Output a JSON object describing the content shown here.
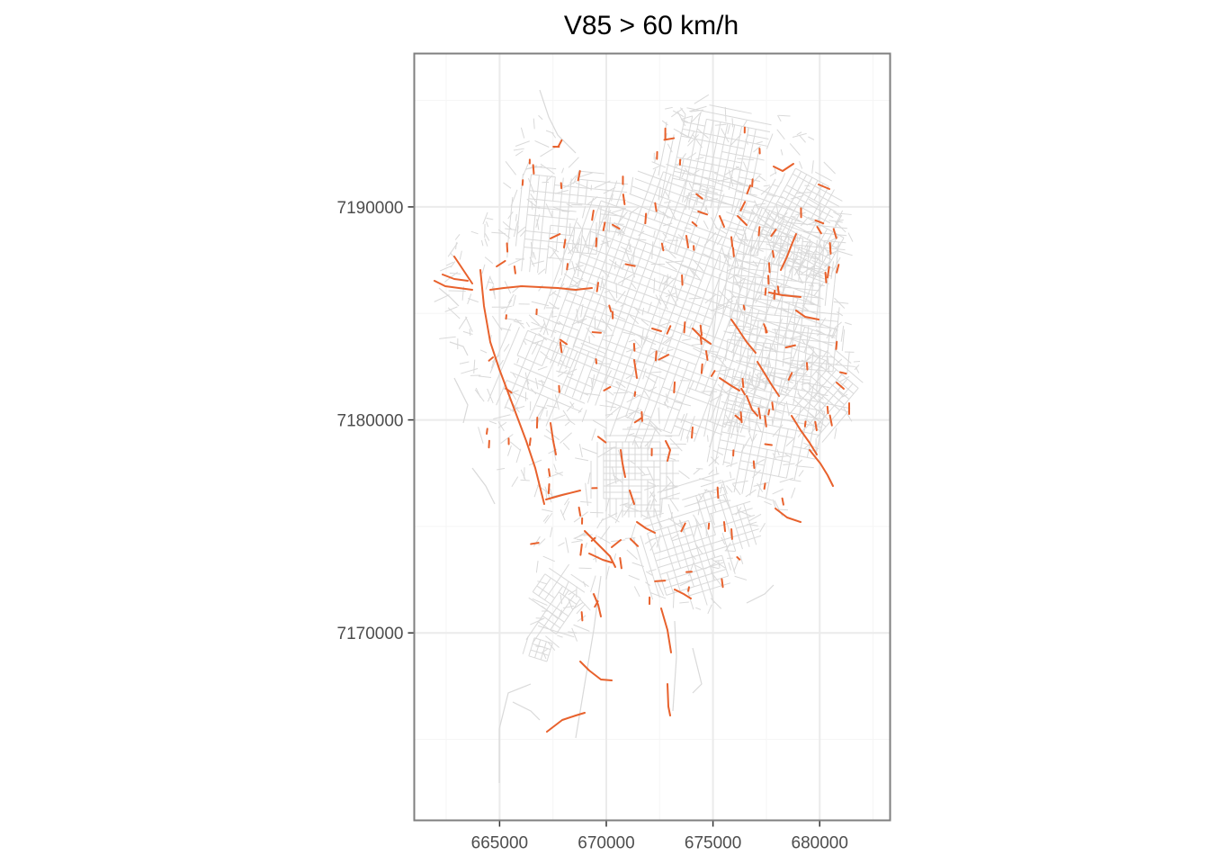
{
  "title": "V85 > 60 km/h",
  "x_axis": {
    "ticks": [
      {
        "value": 665000,
        "label": "665000"
      },
      {
        "value": 670000,
        "label": "670000"
      },
      {
        "value": 675000,
        "label": "675000"
      },
      {
        "value": 680000,
        "label": "680000"
      }
    ],
    "range": [
      661000,
      683300
    ]
  },
  "y_axis": {
    "ticks": [
      {
        "value": 7170000,
        "label": "7170000"
      },
      {
        "value": 7180000,
        "label": "7180000"
      },
      {
        "value": 7190000,
        "label": "7190000"
      }
    ],
    "range": [
      7161200,
      7197200
    ]
  },
  "grid": true,
  "colors": {
    "road_network": "#d9d9d9",
    "high_speed_segments": "#e8612c",
    "grid_major": "#ebebeb",
    "grid_minor": "#f5f5f5",
    "panel_border": "#7f7f7f",
    "tick_text": "#4d4d4d"
  },
  "layers": [
    {
      "name": "road-network",
      "description_color": "#d9d9d9"
    },
    {
      "name": "high-speed-segments",
      "description_color": "#e8612c"
    }
  ]
}
